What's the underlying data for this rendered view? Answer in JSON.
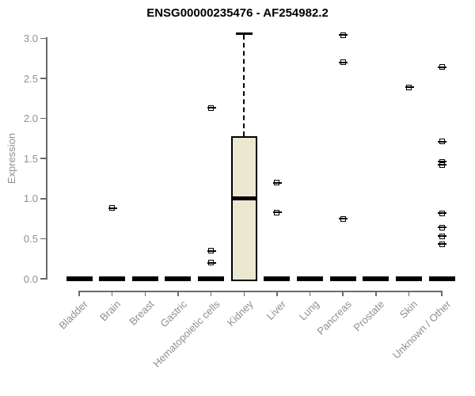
{
  "chart_data": {
    "type": "boxplot",
    "title": "ENSG00000235476 - AF254982.2",
    "xlabel": "",
    "ylabel": "Expression",
    "ylim": [
      0.0,
      3.0
    ],
    "yticks": [
      "0.0",
      "0.5",
      "1.0",
      "1.5",
      "2.0",
      "2.5",
      "3.0"
    ],
    "grid": "off",
    "categories": [
      "Bladder",
      "Brain",
      "Breast",
      "Gastric",
      "Hematopoietic cells",
      "Kidney",
      "Liver",
      "Lung",
      "Pancreas",
      "Prostate",
      "Skin",
      "Unknown / Other"
    ],
    "boxes": [
      {
        "category": "Bladder",
        "q1": 0,
        "median": 0,
        "q3": 0,
        "whisker_low": 0,
        "whisker_high": 0,
        "outliers": []
      },
      {
        "category": "Brain",
        "q1": 0,
        "median": 0,
        "q3": 0,
        "whisker_low": 0,
        "whisker_high": 0,
        "outliers": [
          0.88
        ]
      },
      {
        "category": "Breast",
        "q1": 0,
        "median": 0,
        "q3": 0,
        "whisker_low": 0,
        "whisker_high": 0,
        "outliers": []
      },
      {
        "category": "Gastric",
        "q1": 0,
        "median": 0,
        "q3": 0,
        "whisker_low": 0,
        "whisker_high": 0,
        "outliers": []
      },
      {
        "category": "Hematopoietic cells",
        "q1": 0,
        "median": 0,
        "q3": 0,
        "whisker_low": 0,
        "whisker_high": 0,
        "outliers": [
          2.13,
          0.35,
          0.2
        ]
      },
      {
        "category": "Kidney",
        "q1": 0,
        "median": 1.0,
        "q3": 1.78,
        "whisker_low": 0,
        "whisker_high": 3.06,
        "outliers": []
      },
      {
        "category": "Liver",
        "q1": 0,
        "median": 0,
        "q3": 0,
        "whisker_low": 0,
        "whisker_high": 0,
        "outliers": [
          1.2,
          0.83
        ]
      },
      {
        "category": "Lung",
        "q1": 0,
        "median": 0,
        "q3": 0,
        "whisker_low": 0,
        "whisker_high": 0,
        "outliers": []
      },
      {
        "category": "Pancreas",
        "q1": 0,
        "median": 0,
        "q3": 0,
        "whisker_low": 0,
        "whisker_high": 0,
        "outliers": [
          3.04,
          2.7,
          0.75
        ]
      },
      {
        "category": "Prostate",
        "q1": 0,
        "median": 0,
        "q3": 0,
        "whisker_low": 0,
        "whisker_high": 0,
        "outliers": []
      },
      {
        "category": "Skin",
        "q1": 0,
        "median": 0,
        "q3": 0,
        "whisker_low": 0,
        "whisker_high": 0,
        "outliers": [
          2.39
        ]
      },
      {
        "category": "Unknown / Other",
        "q1": 0,
        "median": 0,
        "q3": 0,
        "whisker_low": 0,
        "whisker_high": 0,
        "outliers": [
          2.64,
          1.71,
          1.46,
          1.42,
          0.82,
          0.64,
          0.53,
          0.43
        ]
      }
    ],
    "colors": {
      "box_fill": "#ece7d0",
      "box_border": "#000000",
      "axis_line": "#6b6b6b",
      "tick_text": "#8f8f8f",
      "title_text": "#000000"
    }
  }
}
